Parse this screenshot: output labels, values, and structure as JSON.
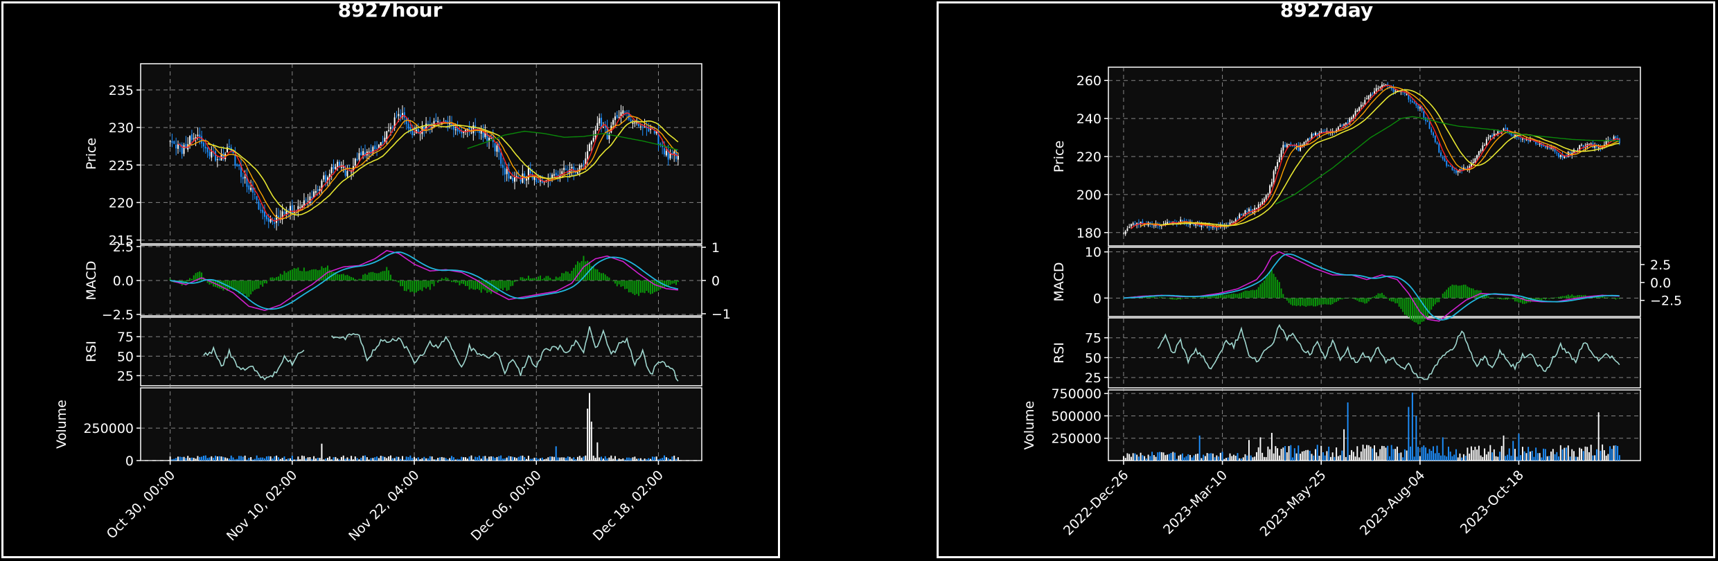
{
  "colors": {
    "background": "#000000",
    "axes_face": "#0d0d0d",
    "up": "#ffffff",
    "down": "#1e90ff",
    "ma_fast": "#ff2020",
    "ma_mid": "#ffa500",
    "ma_slow": "#e8e830",
    "ma_long": "#0a8a0a",
    "macd_line": "#d020d0",
    "signal_line": "#20b8e0",
    "macd_hist": "#0a9a0a",
    "rsi": "#a0d8d0",
    "grid": "#bbbbbb"
  },
  "chart_data": [
    {
      "type": "candlestick",
      "title": "8927hour",
      "xticks": [
        "Oct 30, 00:00",
        "Nov 10, 02:00",
        "Nov 22, 04:00",
        "Dec 06, 00:00",
        "Dec 18, 02:00"
      ],
      "price": {
        "ylabel": "Price",
        "ylim": [
          214.5,
          238.5
        ],
        "yticks": [
          "215",
          "220",
          "225",
          "230",
          "235"
        ]
      },
      "macd": {
        "ylabel": "MACD",
        "ylim": [
          -2.6,
          2.6
        ],
        "yticks": [
          "2.5",
          "0.0",
          "−2.5"
        ],
        "yticks_right": [
          "1",
          "0",
          "−1"
        ]
      },
      "rsi": {
        "ylabel": "RSI",
        "ylim": [
          12,
          100
        ],
        "yticks": [
          "75",
          "50",
          "25"
        ]
      },
      "volume": {
        "ylabel": "Volume",
        "ylim": [
          0,
          560000
        ],
        "yticks": [
          "250000",
          "0"
        ]
      },
      "close_anchors": [
        [
          0,
          228.5
        ],
        [
          6,
          227
        ],
        [
          10,
          228.5
        ],
        [
          14,
          229
        ],
        [
          18,
          227
        ],
        [
          24,
          226
        ],
        [
          30,
          227
        ],
        [
          36,
          224
        ],
        [
          42,
          221
        ],
        [
          48,
          218
        ],
        [
          52,
          217.5
        ],
        [
          56,
          218.5
        ],
        [
          62,
          219
        ],
        [
          68,
          220
        ],
        [
          72,
          221
        ],
        [
          78,
          223
        ],
        [
          84,
          225
        ],
        [
          90,
          224
        ],
        [
          96,
          226
        ],
        [
          102,
          227
        ],
        [
          108,
          228
        ],
        [
          114,
          231
        ],
        [
          118,
          232
        ],
        [
          124,
          229
        ],
        [
          130,
          230
        ],
        [
          136,
          231
        ],
        [
          142,
          230.5
        ],
        [
          148,
          229
        ],
        [
          154,
          230
        ],
        [
          160,
          229
        ],
        [
          166,
          227
        ],
        [
          170,
          224
        ],
        [
          176,
          223
        ],
        [
          182,
          224
        ],
        [
          188,
          223
        ],
        [
          194,
          223.5
        ],
        [
          200,
          224
        ],
        [
          206,
          224.5
        ],
        [
          210,
          225
        ],
        [
          214,
          228
        ],
        [
          218,
          231
        ],
        [
          222,
          229
        ],
        [
          228,
          232
        ],
        [
          234,
          231
        ],
        [
          240,
          230
        ],
        [
          246,
          229.5
        ],
        [
          250,
          227
        ],
        [
          254,
          226
        ],
        [
          258,
          226.5
        ]
      ],
      "ma_long_anchors": [
        [
          151,
          227.2
        ],
        [
          160,
          228
        ],
        [
          170,
          229
        ],
        [
          180,
          229.5
        ],
        [
          190,
          229.2
        ],
        [
          200,
          228.7
        ],
        [
          210,
          228.8
        ],
        [
          220,
          229.2
        ],
        [
          230,
          228.7
        ],
        [
          240,
          228.2
        ],
        [
          250,
          227.6
        ],
        [
          258,
          227
        ]
      ],
      "volume_spikes": [
        [
          77,
          130000
        ],
        [
          212,
          400000
        ],
        [
          213,
          520000
        ],
        [
          214,
          300000
        ],
        [
          217,
          140000
        ],
        [
          196,
          110000
        ]
      ],
      "macd_anchors": [
        [
          0,
          0
        ],
        [
          8,
          -0.3
        ],
        [
          16,
          0.2
        ],
        [
          24,
          -0.3
        ],
        [
          32,
          -0.9
        ],
        [
          40,
          -1.9
        ],
        [
          48,
          -2.2
        ],
        [
          56,
          -1.8
        ],
        [
          64,
          -1
        ],
        [
          72,
          -0.3
        ],
        [
          80,
          0.6
        ],
        [
          88,
          1
        ],
        [
          96,
          1.1
        ],
        [
          104,
          1.6
        ],
        [
          110,
          2.2
        ],
        [
          116,
          2
        ],
        [
          124,
          1.2
        ],
        [
          132,
          0.7
        ],
        [
          140,
          0.8
        ],
        [
          148,
          0.6
        ],
        [
          156,
          0
        ],
        [
          164,
          -0.8
        ],
        [
          172,
          -1.4
        ],
        [
          180,
          -1.2
        ],
        [
          188,
          -1
        ],
        [
          196,
          -0.8
        ],
        [
          204,
          -0.2
        ],
        [
          210,
          1
        ],
        [
          216,
          1.6
        ],
        [
          222,
          1.8
        ],
        [
          230,
          1.4
        ],
        [
          238,
          0.5
        ],
        [
          246,
          -0.3
        ],
        [
          252,
          -0.6
        ],
        [
          258,
          -0.7
        ]
      ],
      "rsi_anchors": [
        [
          17,
          50
        ],
        [
          22,
          58
        ],
        [
          26,
          36
        ],
        [
          30,
          56
        ],
        [
          34,
          38
        ],
        [
          38,
          32
        ],
        [
          42,
          36
        ],
        [
          46,
          22
        ],
        [
          50,
          24
        ],
        [
          54,
          28
        ],
        [
          58,
          48
        ],
        [
          62,
          40
        ],
        [
          66,
          55
        ],
        [
          68,
          58
        ]
      ],
      "rsi_anchors2": [
        [
          82,
          77
        ],
        [
          88,
          72
        ],
        [
          92,
          78
        ],
        [
          96,
          75
        ],
        [
          100,
          45
        ],
        [
          104,
          60
        ],
        [
          108,
          72
        ],
        [
          112,
          68
        ],
        [
          116,
          74
        ],
        [
          120,
          60
        ],
        [
          124,
          42
        ],
        [
          128,
          52
        ],
        [
          132,
          67
        ],
        [
          136,
          62
        ],
        [
          140,
          75
        ],
        [
          144,
          55
        ],
        [
          148,
          35
        ],
        [
          152,
          62
        ],
        [
          156,
          54
        ],
        [
          160,
          48
        ],
        [
          166,
          55
        ],
        [
          170,
          30
        ],
        [
          174,
          48
        ],
        [
          178,
          27
        ],
        [
          182,
          50
        ],
        [
          186,
          35
        ],
        [
          190,
          58
        ],
        [
          194,
          60
        ],
        [
          198,
          62
        ],
        [
          202,
          55
        ],
        [
          206,
          70
        ],
        [
          210,
          52
        ],
        [
          213,
          90
        ],
        [
          216,
          60
        ],
        [
          220,
          80
        ],
        [
          224,
          50
        ],
        [
          228,
          65
        ],
        [
          232,
          72
        ],
        [
          236,
          40
        ],
        [
          240,
          55
        ],
        [
          244,
          25
        ],
        [
          248,
          45
        ],
        [
          252,
          38
        ],
        [
          256,
          30
        ],
        [
          258,
          18
        ]
      ]
    },
    {
      "type": "candlestick",
      "title": "8927day",
      "xticks": [
        "2022-Dec-26",
        "2023-Mar-10",
        "2023-May-25",
        "2023-Aug-04",
        "2023-Oct-18"
      ],
      "price": {
        "ylabel": "Price",
        "ylim": [
          173,
          267
        ],
        "yticks": [
          "260",
          "240",
          "220",
          "200",
          "180"
        ]
      },
      "macd": {
        "ylabel": "MACD",
        "ylim": [
          -4,
          11
        ],
        "yticks": [
          "10",
          "0"
        ],
        "yticks_right": [
          "2.5",
          "0.0",
          "−2.5"
        ]
      },
      "rsi": {
        "ylabel": "RSI",
        "ylim": [
          12,
          100
        ],
        "yticks": [
          "75",
          "50",
          "25"
        ]
      },
      "volume": {
        "ylabel": "Volume",
        "ylim": [
          0,
          790000
        ],
        "yticks": [
          "750000",
          "500000",
          "250000"
        ]
      },
      "close_anchors": [
        [
          0,
          180
        ],
        [
          4,
          184
        ],
        [
          10,
          185
        ],
        [
          20,
          184
        ],
        [
          30,
          186
        ],
        [
          40,
          184
        ],
        [
          50,
          183
        ],
        [
          56,
          185
        ],
        [
          62,
          190
        ],
        [
          68,
          192
        ],
        [
          72,
          195
        ],
        [
          76,
          200
        ],
        [
          80,
          215
        ],
        [
          84,
          225
        ],
        [
          88,
          227
        ],
        [
          92,
          224
        ],
        [
          96,
          228
        ],
        [
          100,
          232
        ],
        [
          106,
          233
        ],
        [
          112,
          234
        ],
        [
          118,
          238
        ],
        [
          124,
          246
        ],
        [
          130,
          252
        ],
        [
          136,
          258
        ],
        [
          142,
          255
        ],
        [
          148,
          254
        ],
        [
          152,
          248
        ],
        [
          156,
          245
        ],
        [
          160,
          238
        ],
        [
          164,
          228
        ],
        [
          168,
          218
        ],
        [
          172,
          214
        ],
        [
          176,
          212
        ],
        [
          180,
          214
        ],
        [
          184,
          216
        ],
        [
          188,
          224
        ],
        [
          192,
          230
        ],
        [
          196,
          232
        ],
        [
          200,
          235
        ],
        [
          204,
          232
        ],
        [
          210,
          230
        ],
        [
          216,
          228
        ],
        [
          220,
          226
        ],
        [
          226,
          224
        ],
        [
          230,
          220
        ],
        [
          236,
          222
        ],
        [
          240,
          225
        ],
        [
          246,
          226
        ],
        [
          250,
          224
        ],
        [
          254,
          228
        ],
        [
          258,
          230
        ],
        [
          261,
          228
        ]
      ],
      "ma_long_anchors": [
        [
          80,
          195
        ],
        [
          90,
          200
        ],
        [
          100,
          207
        ],
        [
          110,
          214
        ],
        [
          120,
          222
        ],
        [
          130,
          230
        ],
        [
          140,
          236
        ],
        [
          146,
          240
        ],
        [
          152,
          241
        ],
        [
          158,
          240
        ],
        [
          166,
          238
        ],
        [
          176,
          236
        ],
        [
          186,
          235
        ],
        [
          196,
          234
        ],
        [
          206,
          232
        ],
        [
          216,
          231
        ],
        [
          226,
          230
        ],
        [
          236,
          229
        ],
        [
          246,
          228.5
        ],
        [
          256,
          228.3
        ],
        [
          261,
          228.2
        ]
      ],
      "volume_spikes": [
        [
          40,
          280000
        ],
        [
          66,
          230000
        ],
        [
          72,
          260000
        ],
        [
          78,
          310000
        ],
        [
          116,
          350000
        ],
        [
          118,
          650000
        ],
        [
          150,
          600000
        ],
        [
          152,
          760000
        ],
        [
          154,
          500000
        ],
        [
          168,
          260000
        ],
        [
          200,
          280000
        ],
        [
          205,
          220000
        ],
        [
          208,
          300000
        ],
        [
          250,
          540000
        ],
        [
          252,
          180000
        ]
      ],
      "macd_anchors": [
        [
          0,
          0
        ],
        [
          10,
          0.4
        ],
        [
          20,
          0.6
        ],
        [
          30,
          0.3
        ],
        [
          40,
          0.4
        ],
        [
          50,
          1
        ],
        [
          60,
          2
        ],
        [
          70,
          4
        ],
        [
          74,
          6
        ],
        [
          78,
          9
        ],
        [
          82,
          10
        ],
        [
          90,
          8.5
        ],
        [
          100,
          6.5
        ],
        [
          110,
          5
        ],
        [
          120,
          5
        ],
        [
          128,
          4
        ],
        [
          136,
          5
        ],
        [
          144,
          4
        ],
        [
          150,
          1
        ],
        [
          156,
          -3
        ],
        [
          160,
          -4.6
        ],
        [
          166,
          -5
        ],
        [
          172,
          -3
        ],
        [
          180,
          -0.5
        ],
        [
          188,
          1
        ],
        [
          196,
          0.8
        ],
        [
          204,
          0.6
        ],
        [
          212,
          -0.5
        ],
        [
          220,
          -0.8
        ],
        [
          228,
          -0.8
        ],
        [
          236,
          -0.2
        ],
        [
          244,
          0.3
        ],
        [
          252,
          0.6
        ],
        [
          261,
          0.4
        ]
      ],
      "rsi_anchors": [
        [
          18,
          60
        ],
        [
          22,
          78
        ],
        [
          26,
          55
        ],
        [
          30,
          72
        ],
        [
          34,
          45
        ],
        [
          38,
          60
        ],
        [
          42,
          50
        ],
        [
          46,
          35
        ],
        [
          50,
          55
        ],
        [
          54,
          70
        ],
        [
          58,
          65
        ],
        [
          62,
          85
        ],
        [
          66,
          55
        ],
        [
          70,
          45
        ],
        [
          74,
          60
        ],
        [
          78,
          65
        ],
        [
          82,
          90
        ],
        [
          86,
          75
        ],
        [
          90,
          80
        ],
        [
          94,
          62
        ],
        [
          98,
          55
        ],
        [
          102,
          68
        ],
        [
          106,
          50
        ],
        [
          110,
          72
        ],
        [
          114,
          48
        ],
        [
          118,
          60
        ],
        [
          122,
          42
        ],
        [
          126,
          55
        ],
        [
          130,
          48
        ],
        [
          134,
          62
        ],
        [
          138,
          45
        ],
        [
          142,
          52
        ],
        [
          146,
          35
        ],
        [
          150,
          40
        ],
        [
          154,
          28
        ],
        [
          158,
          20
        ],
        [
          162,
          30
        ],
        [
          166,
          48
        ],
        [
          170,
          55
        ],
        [
          174,
          65
        ],
        [
          178,
          85
        ],
        [
          182,
          60
        ],
        [
          186,
          40
        ],
        [
          190,
          52
        ],
        [
          194,
          35
        ],
        [
          198,
          58
        ],
        [
          202,
          45
        ],
        [
          206,
          38
        ],
        [
          210,
          52
        ],
        [
          214,
          55
        ],
        [
          218,
          42
        ],
        [
          222,
          30
        ],
        [
          226,
          50
        ],
        [
          230,
          65
        ],
        [
          234,
          55
        ],
        [
          238,
          45
        ],
        [
          242,
          70
        ],
        [
          246,
          60
        ],
        [
          250,
          45
        ],
        [
          254,
          55
        ],
        [
          258,
          48
        ],
        [
          261,
          42
        ]
      ]
    }
  ]
}
